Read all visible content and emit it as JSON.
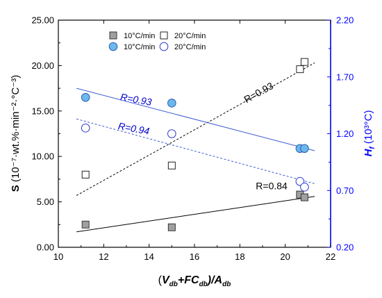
{
  "chart_data": {
    "type": "scatter",
    "x_axis": {
      "label_main": "(",
      "label_parts": [
        "V",
        "db",
        "+FC",
        "db",
        ")/A",
        "db"
      ],
      "range": [
        10,
        22
      ],
      "ticks": [
        "10",
        "12",
        "14",
        "16",
        "18",
        "20",
        "22"
      ]
    },
    "y_left": {
      "label_bold": "S",
      "label_rest": " (10⁻⁷·wt.%·min⁻²·°C⁻³)",
      "range": [
        0,
        25
      ],
      "ticks": [
        "0.00",
        "5.00",
        "10.00",
        "15.00",
        "20.00",
        "25.00"
      ]
    },
    "y_right": {
      "label_bold": "H",
      "label_sub": "f",
      "label_rest": " (10³°C)",
      "range": [
        0.2,
        2.2
      ],
      "ticks": [
        "0.20",
        "0.70",
        "1.20",
        "1.70",
        "2.20"
      ]
    },
    "legend": [
      {
        "label": "10°C/min",
        "marker": "square-filled"
      },
      {
        "label": "20°C/min",
        "marker": "square-open"
      },
      {
        "label": "10°C/min",
        "marker": "circle-filled"
      },
      {
        "label": "20°C/min",
        "marker": "circle-open"
      }
    ],
    "series": [
      {
        "axis": "left",
        "marker": "square-filled",
        "x": [
          11.2,
          15.0,
          20.65,
          20.85
        ],
        "y": [
          2.5,
          2.2,
          5.8,
          5.5
        ],
        "fit": {
          "x": [
            10.8,
            21.3
          ],
          "y": [
            1.7,
            5.6
          ],
          "style": "solid",
          "color": "#000000"
        }
      },
      {
        "axis": "left",
        "marker": "square-open",
        "x": [
          11.2,
          15.0,
          20.65,
          20.85
        ],
        "y": [
          8.0,
          9.0,
          19.6,
          20.4
        ],
        "fit": {
          "x": [
            10.8,
            21.3
          ],
          "y": [
            5.7,
            20.3
          ],
          "style": "dashed",
          "color": "#000000"
        }
      },
      {
        "axis": "right",
        "marker": "circle-filled",
        "x": [
          11.2,
          15.0,
          20.65,
          20.85
        ],
        "y": [
          1.52,
          1.47,
          1.07,
          1.07
        ],
        "fit": {
          "x": [
            10.8,
            21.3
          ],
          "y": [
            1.6,
            1.05
          ],
          "style": "solid",
          "color": "#3a5ad0"
        }
      },
      {
        "axis": "right",
        "marker": "circle-open",
        "x": [
          11.2,
          15.0,
          20.65,
          20.85
        ],
        "y": [
          1.25,
          1.2,
          0.78,
          0.73
        ],
        "fit": {
          "x": [
            10.8,
            21.3
          ],
          "y": [
            1.33,
            0.76
          ],
          "style": "dashed",
          "color": "#3a5ad0"
        }
      }
    ],
    "annotations": [
      {
        "text": "R=0.93",
        "color": "#000000",
        "italic": false,
        "x": 18.9,
        "y": 16.7,
        "rotate": -29
      },
      {
        "text": "R=0.84",
        "color": "#000000",
        "italic": false,
        "x": 19.4,
        "y": 6.4,
        "rotate": 0
      },
      {
        "text": "R=0.93",
        "color": "#0000cc",
        "italic": true,
        "x": 13.4,
        "y": 15.9,
        "rotate": 10
      },
      {
        "text": "R=0.94",
        "color": "#0000cc",
        "italic": true,
        "x": 13.3,
        "y": 12.7,
        "rotate": 10
      }
    ],
    "colors": {
      "left_axis": "#000000",
      "right_axis": "#0000ff",
      "filled_square": "#a0a0a0",
      "filled_circle": "#6cb8ec",
      "open_circle_edge": "#2a3ccc"
    }
  }
}
